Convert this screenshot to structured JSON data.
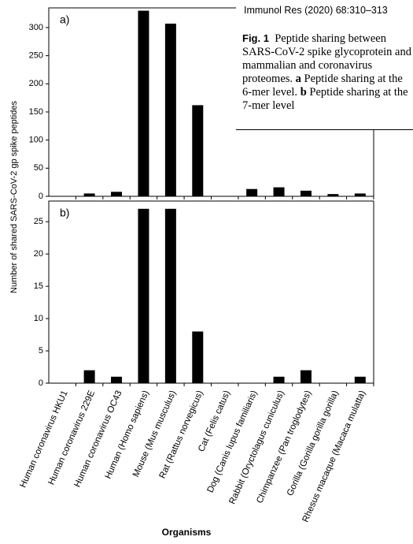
{
  "header": "Immunol Res (2020) 68:310–313",
  "caption": {
    "label": "Fig. 1",
    "text_1": "Peptide sharing between SARS-CoV-2 spike glycoprotein and mammalian and coronavirus proteomes.",
    "a": "a",
    "text_2": "Peptide sharing at the 6-mer level.",
    "b": "b",
    "text_3": "Peptide sharing at the 7-mer level"
  },
  "figure": {
    "ylabel": "Number of shared SARS-CoV-2 gp spike peptides",
    "xlabel": "Organisms"
  },
  "chart_data": [
    {
      "type": "bar",
      "label": "a)",
      "color": "#000000",
      "values": [
        0,
        5,
        8,
        330,
        307,
        162,
        0,
        13,
        16,
        10,
        4,
        5
      ],
      "ylim": [
        0,
        335
      ],
      "yticks": [
        0,
        50,
        100,
        150,
        200,
        250,
        300
      ]
    },
    {
      "type": "bar",
      "label": "b)",
      "color": "#000000",
      "categories": [
        "Human coronavirus HKU1",
        "Human coronavirus 229E",
        "Human coronavirus OC43",
        "Human (Homo sapiens)",
        "Mouse (Mus musculus)",
        "Rat (Rattus norvegicus)",
        "Cat (Felis catus)",
        "Dog (Canis lupus familiaris)",
        "Rabbit (Oryctolagus cuniculus)",
        "Chimpanzee (Pan troglodytes)",
        "Gorilla (Gorilla gorilla gorilla)",
        "Rhesus macaque (Macaca mulatta)"
      ],
      "values": [
        0,
        2,
        1,
        27,
        27,
        8,
        0,
        0,
        1,
        2,
        0,
        1
      ],
      "ylim": [
        0,
        28.2
      ],
      "yticks": [
        0,
        5,
        10,
        15,
        20,
        25
      ]
    }
  ]
}
